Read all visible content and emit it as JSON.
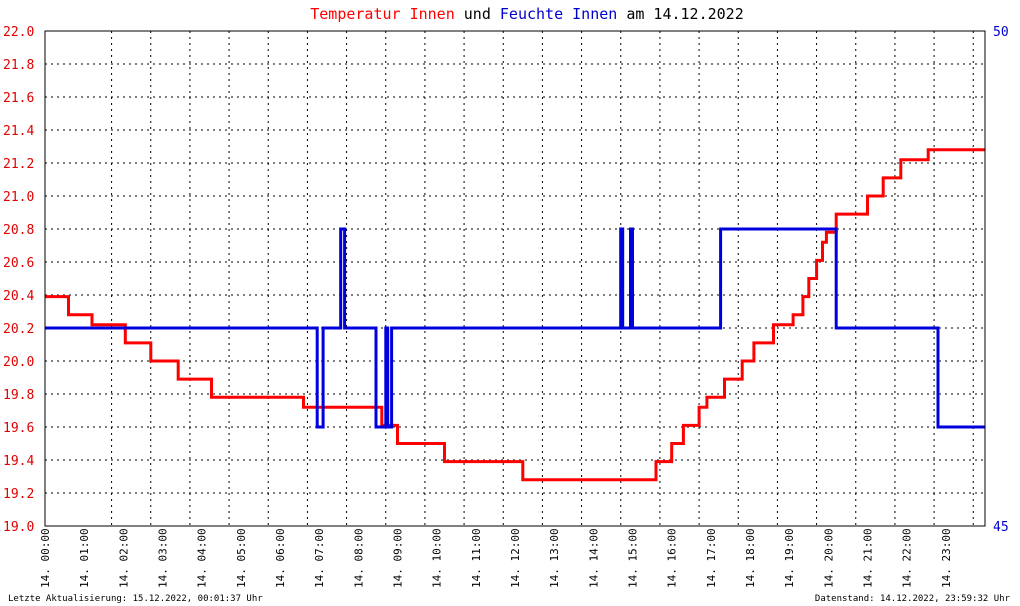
{
  "title": {
    "part1": "Temperatur Innen",
    "part2": " und ",
    "part3": "Feuchte Innen",
    "part4": " am 14.12.2022"
  },
  "colors": {
    "temperature": "#ff0000",
    "humidity": "#0000dd",
    "grid": "#000000",
    "left_axis_text": "#e00000",
    "right_axis_text": "#0000cc"
  },
  "footer": {
    "left": "Letzte Aktualisierung: 15.12.2022, 00:01:37 Uhr",
    "right": "Datenstand: 14.12.2022, 23:59:32 Uhr"
  },
  "chart_data": {
    "type": "line",
    "title": "Temperatur Innen und Feuchte Innen am 14.12.2022",
    "x_ticks": [
      "14. 00:00",
      "14. 01:00",
      "14. 02:00",
      "14. 03:00",
      "14. 04:00",
      "14. 05:00",
      "14. 06:00",
      "14. 07:00",
      "14. 08:00",
      "14. 09:00",
      "14. 10:00",
      "14. 11:00",
      "14. 12:00",
      "14. 13:00",
      "14. 14:00",
      "14. 15:00",
      "14. 16:00",
      "14. 17:00",
      "14. 18:00",
      "14. 19:00",
      "14. 20:00",
      "14. 21:00",
      "14. 22:00",
      "14. 23:00"
    ],
    "xlim": [
      0,
      24
    ],
    "y_left": {
      "ylim": [
        19.0,
        22.0
      ],
      "ticks": [
        "19.0",
        "19.2",
        "19.4",
        "19.6",
        "19.8",
        "20.0",
        "20.2",
        "20.4",
        "20.6",
        "20.8",
        "21.0",
        "21.2",
        "21.4",
        "21.6",
        "21.8",
        "22.0"
      ]
    },
    "y_right": {
      "ylim": [
        45,
        50
      ],
      "ticks": [
        "45",
        "50"
      ]
    },
    "grid": true,
    "series": [
      {
        "name": "Temperatur Innen",
        "axis": "left",
        "x": [
          0,
          0.6,
          0.6,
          1.2,
          1.2,
          1.55,
          1.55,
          2.05,
          2.05,
          2.35,
          2.35,
          2.7,
          2.7,
          3.4,
          3.4,
          4.25,
          4.25,
          5.3,
          5.3,
          6.6,
          6.6,
          7.1,
          7.1,
          7.5,
          7.5,
          7.9,
          7.9,
          8.6,
          8.6,
          9.0,
          9.0,
          10.2,
          10.2,
          11.2,
          11.2,
          12.2,
          12.2,
          15.6,
          15.6,
          16.0,
          16.0,
          16.3,
          16.3,
          16.7,
          16.7,
          16.9,
          16.9,
          17.35,
          17.35,
          17.8,
          17.8,
          18.1,
          18.1,
          18.6,
          18.6,
          19.1,
          19.1,
          19.35,
          19.35,
          19.5,
          19.5,
          19.7,
          19.7,
          19.85,
          19.85,
          19.95,
          19.95,
          20.2,
          20.2,
          20.3,
          20.3,
          21.0,
          21.0,
          21.4,
          21.4,
          21.85,
          21.85,
          22.05,
          22.05,
          22.55,
          22.55,
          23.3,
          23.3,
          24.0
        ],
        "values": [
          20.39,
          20.39,
          20.28,
          20.28,
          20.22,
          20.22,
          20.22,
          20.22,
          20.11,
          20.11,
          20.11,
          20.11,
          20.0,
          20.0,
          19.89,
          19.89,
          19.78,
          19.78,
          19.78,
          19.78,
          19.72,
          19.72,
          19.72,
          19.72,
          19.72,
          19.72,
          19.72,
          19.72,
          19.61,
          19.61,
          19.5,
          19.5,
          19.39,
          19.39,
          19.39,
          19.39,
          19.28,
          19.28,
          19.39,
          19.39,
          19.5,
          19.5,
          19.61,
          19.61,
          19.72,
          19.72,
          19.78,
          19.78,
          19.89,
          19.89,
          20.0,
          20.0,
          20.11,
          20.11,
          20.22,
          20.22,
          20.28,
          20.28,
          20.39,
          20.39,
          20.5,
          20.5,
          20.61,
          20.61,
          20.72,
          20.72,
          20.78,
          20.78,
          20.89,
          20.89,
          20.89,
          20.89,
          21.0,
          21.0,
          21.11,
          21.11,
          21.22,
          21.22,
          21.22,
          21.22,
          21.28,
          21.28,
          21.28,
          21.28
        ]
      },
      {
        "name": "Feuchte Innen",
        "axis": "right",
        "x": [
          0,
          6.95,
          6.95,
          7.1,
          7.1,
          7.55,
          7.55,
          7.65,
          7.65,
          8.45,
          8.45,
          8.7,
          8.7,
          8.75,
          8.75,
          8.85,
          8.85,
          8.95,
          8.95,
          14.7,
          14.7,
          14.75,
          14.75,
          14.95,
          14.95,
          15.0,
          15.0,
          17.25,
          17.25,
          20.2,
          20.2,
          22.8,
          22.8,
          24.0
        ],
        "values": [
          47.0,
          47.0,
          46.0,
          46.0,
          47.0,
          47.0,
          48.0,
          48.0,
          47.0,
          47.0,
          46.0,
          46.0,
          47.0,
          47.0,
          46.0,
          46.0,
          47.0,
          47.0,
          47.0,
          47.0,
          48.0,
          48.0,
          47.0,
          47.0,
          48.0,
          48.0,
          47.0,
          47.0,
          48.0,
          48.0,
          47.0,
          47.0,
          46.0,
          46.0
        ]
      }
    ]
  }
}
